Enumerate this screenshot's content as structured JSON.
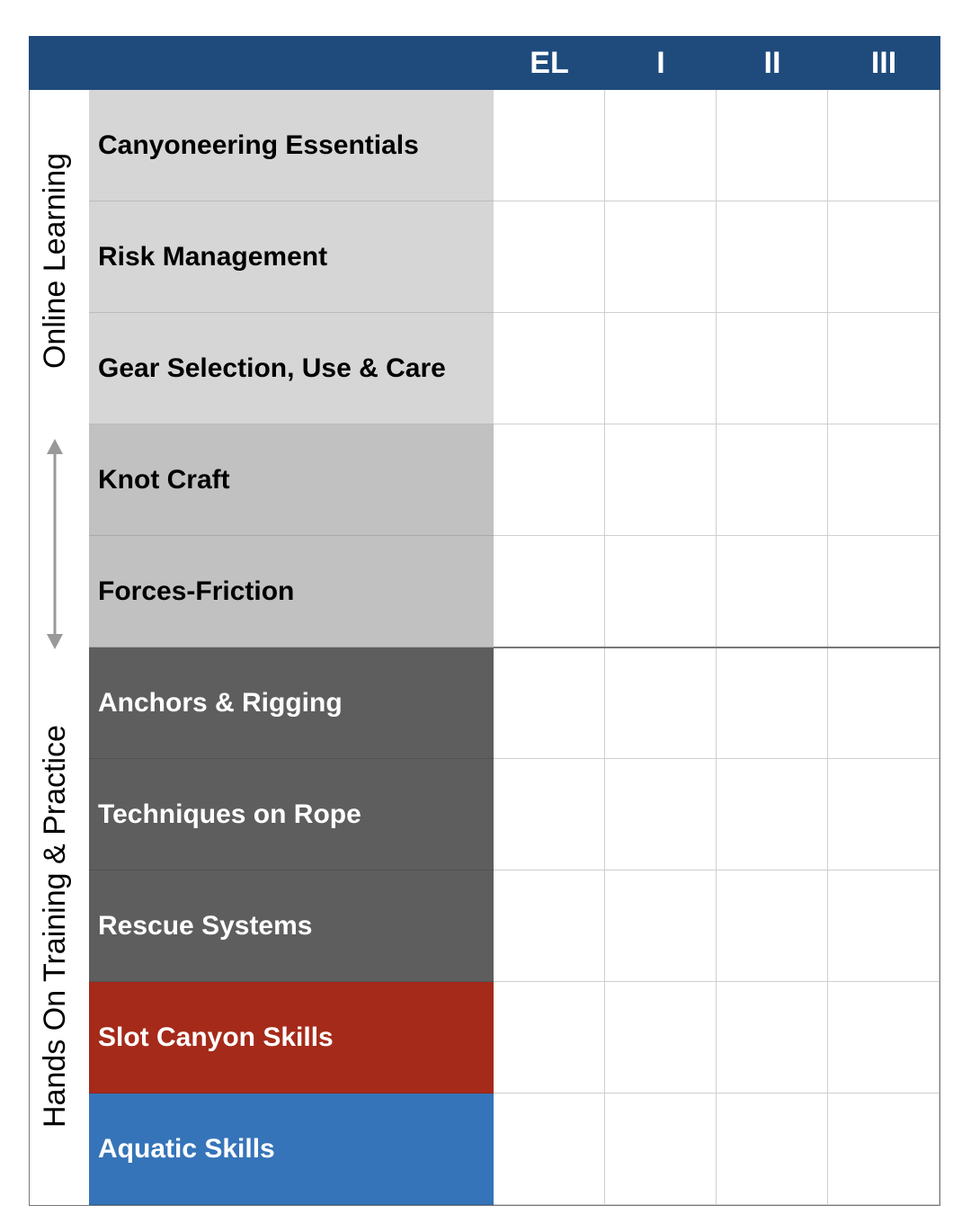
{
  "header": {
    "columns": [
      "EL",
      "I",
      "II",
      "III"
    ]
  },
  "sections": [
    {
      "label": "Online Learning"
    },
    {
      "label": "Hands On Training & Practice"
    }
  ],
  "rows": [
    {
      "label": "Canyoneering Essentials"
    },
    {
      "label": "Risk Management"
    },
    {
      "label": "Gear Selection, Use & Care"
    },
    {
      "label": "Knot Craft"
    },
    {
      "label": "Forces-Friction"
    },
    {
      "label": "Anchors & Rigging"
    },
    {
      "label": "Techniques on Rope"
    },
    {
      "label": "Rescue Systems"
    },
    {
      "label": "Slot Canyon Skills"
    },
    {
      "label": "Aquatic Skills"
    }
  ]
}
